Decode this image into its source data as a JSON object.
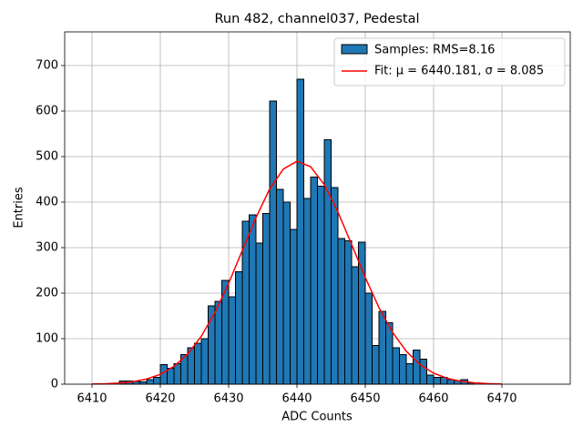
{
  "chart_data": {
    "type": "histogram",
    "title": "Run 482, channel037, Pedestal",
    "xlabel": "ADC Counts",
    "ylabel": "Entries",
    "name": "Samples: RMS=8.16",
    "color": "#1f77b4",
    "edgecolor": "#000000",
    "bins": [
      6414,
      6415,
      6416,
      6417,
      6418,
      6419,
      6420,
      6421,
      6422,
      6423,
      6424,
      6425,
      6426,
      6427,
      6428,
      6429,
      6430,
      6431,
      6432,
      6433,
      6434,
      6435,
      6436,
      6437,
      6438,
      6439,
      6440,
      6441,
      6442,
      6443,
      6444,
      6445,
      6446,
      6447,
      6448,
      6449,
      6450,
      6451,
      6452,
      6453,
      6454,
      6455,
      6456,
      6457,
      6458,
      6459,
      6460,
      6461,
      6462,
      6463,
      6464,
      6465,
      6466
    ],
    "values": [
      7,
      7,
      6,
      5,
      10,
      15,
      43,
      35,
      45,
      65,
      80,
      90,
      100,
      172,
      182,
      228,
      192,
      247,
      358,
      372,
      310,
      375,
      622,
      428,
      400,
      340,
      670,
      408,
      455,
      435,
      537,
      432,
      320,
      315,
      258,
      312,
      200,
      85,
      160,
      135,
      80,
      65,
      45,
      75,
      55,
      20,
      15,
      15,
      10,
      8,
      10,
      3
    ],
    "fit": {
      "name": "Fit: μ = 6440.181, σ = 8.085",
      "color": "#ff0000",
      "x": [
        6410,
        6412,
        6414,
        6416,
        6418,
        6420,
        6422,
        6424,
        6426,
        6428,
        6430,
        6432,
        6434,
        6436,
        6438,
        6440,
        6442,
        6444,
        6446,
        6448,
        6450,
        6452,
        6454,
        6456,
        6458,
        6460,
        6462,
        6464,
        6466,
        6468,
        6470
      ],
      "values": [
        0.5,
        1.1,
        2.6,
        5.6,
        11.4,
        21.7,
        39.1,
        66.1,
        105.3,
        157.5,
        221.7,
        293.7,
        365.8,
        428.7,
        472.5,
        489.9,
        477.7,
        438.3,
        378.2,
        307.0,
        234.4,
        168.3,
        113.7,
        72.3,
        43.2,
        24.3,
        12.8,
        6.4,
        3.0,
        1.3,
        0.5
      ]
    },
    "xlim": [
      6406,
      6480
    ],
    "ylim": [
      0,
      774
    ],
    "xticks": [
      6410,
      6420,
      6430,
      6440,
      6450,
      6460,
      6470
    ],
    "yticks": [
      0,
      100,
      200,
      300,
      400,
      500,
      600,
      700
    ],
    "grid": true,
    "legend": "upper right"
  }
}
